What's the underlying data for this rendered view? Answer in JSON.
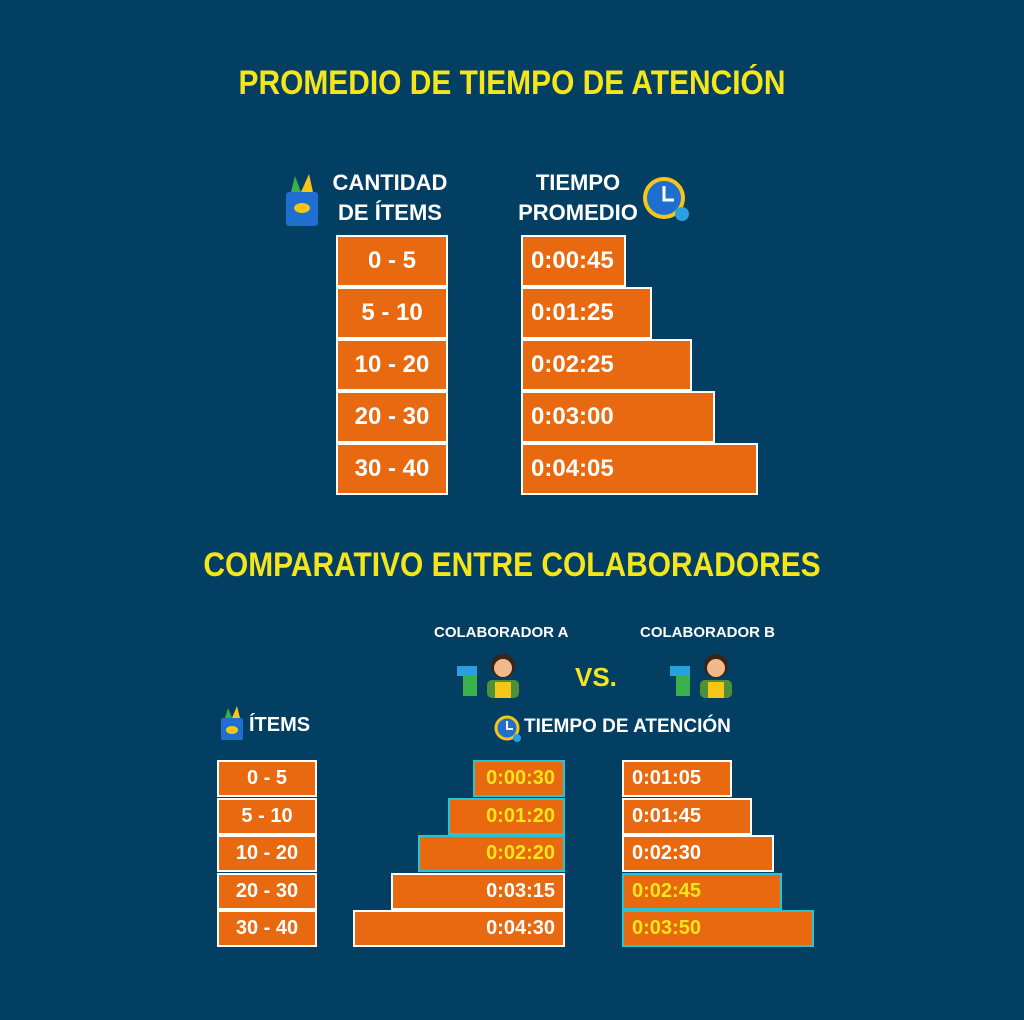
{
  "top": {
    "title": "PROMEDIO DE TIEMPO DE ATENCIÓN",
    "col1_header": [
      "CANTIDAD",
      "DE ÍTEMS"
    ],
    "col2_header": [
      "TIEMPO",
      "PROMEDIO"
    ],
    "rows": [
      {
        "items": "0 - 5",
        "time": "0:00:45"
      },
      {
        "items": "5 - 10",
        "time": "0:01:25"
      },
      {
        "items": "10 - 20",
        "time": "0:02:25"
      },
      {
        "items": "20 - 30",
        "time": "0:03:00"
      },
      {
        "items": "30 - 40",
        "time": "0:04:05"
      }
    ]
  },
  "bottom": {
    "title": "COMPARATIVO ENTRE COLABORADORES",
    "collab_a": "COLABORADOR A",
    "collab_b": "COLABORADOR B",
    "vs": "VS.",
    "items_header": "ÍTEMS",
    "time_header": "TIEMPO DE ATENCIÓN",
    "rows": [
      {
        "items": "0 - 5",
        "a": {
          "time": "0:00:30",
          "highlight": true
        },
        "b": {
          "time": "0:01:05",
          "highlight": false
        }
      },
      {
        "items": "5 - 10",
        "a": {
          "time": "0:01:20",
          "highlight": true
        },
        "b": {
          "time": "0:01:45",
          "highlight": false
        }
      },
      {
        "items": "10 - 20",
        "a": {
          "time": "0:02:20",
          "highlight": true
        },
        "b": {
          "time": "0:02:30",
          "highlight": false
        }
      },
      {
        "items": "20 - 30",
        "a": {
          "time": "0:03:15",
          "highlight": false
        },
        "b": {
          "time": "0:02:45",
          "highlight": true
        }
      },
      {
        "items": "30 - 40",
        "a": {
          "time": "0:04:30",
          "highlight": false
        },
        "b": {
          "time": "0:03:50",
          "highlight": true
        }
      }
    ]
  }
}
